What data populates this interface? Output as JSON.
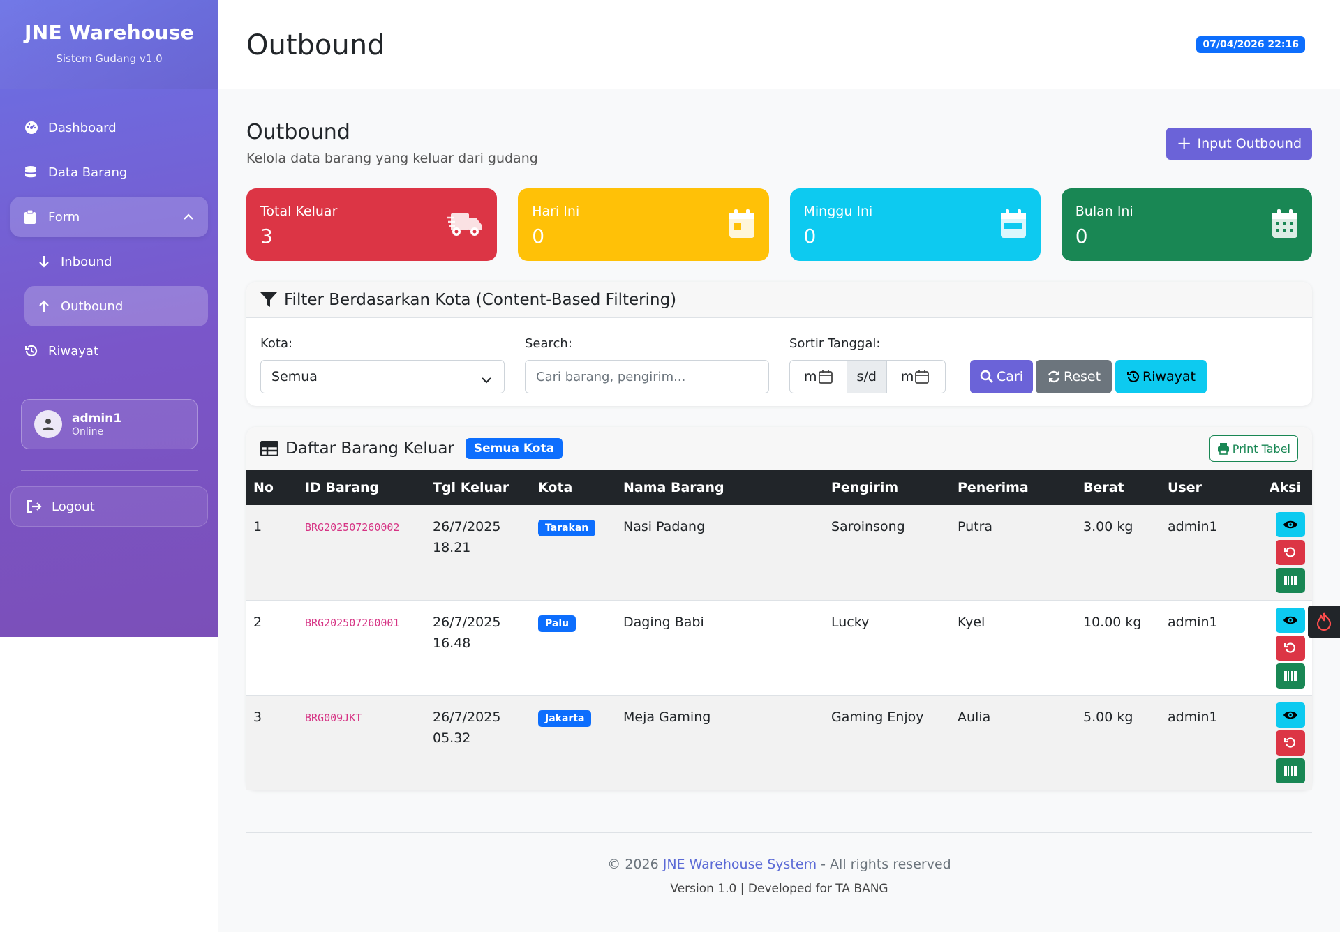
{
  "sidebar": {
    "brand_title": "JNE Warehouse",
    "brand_sub": "Sistem Gudang v1.0",
    "items": [
      {
        "label": "Dashboard",
        "icon": "dashboard-icon"
      },
      {
        "label": "Data Barang",
        "icon": "database-icon"
      },
      {
        "label": "Form",
        "icon": "clipboard-icon"
      },
      {
        "label": "Inbound",
        "icon": "arrow-down-icon"
      },
      {
        "label": "Outbound",
        "icon": "arrow-up-icon"
      },
      {
        "label": "Riwayat",
        "icon": "history-icon"
      }
    ],
    "user": {
      "name": "admin1",
      "status": "Online"
    },
    "logout": "Logout"
  },
  "topbar": {
    "title": "Outbound",
    "datetime": "07/04/2026 22:16"
  },
  "page": {
    "title": "Outbound",
    "subtitle": "Kelola data barang yang keluar dari gudang",
    "input_button": "Input Outbound"
  },
  "stats": [
    {
      "label": "Total Keluar",
      "value": "3",
      "color": "#dc3545",
      "icon": "truck-icon"
    },
    {
      "label": "Hari Ini",
      "value": "0",
      "color": "#ffc107",
      "icon": "calendar-day-icon"
    },
    {
      "label": "Minggu Ini",
      "value": "0",
      "color": "#0dcaf0",
      "icon": "calendar-week-icon"
    },
    {
      "label": "Bulan Ini",
      "value": "0",
      "color": "#198754",
      "icon": "calendar-month-icon"
    }
  ],
  "filter": {
    "title": "Filter Berdasarkan Kota (Content-Based Filtering)",
    "kota_label": "Kota:",
    "kota_value": "Semua",
    "search_label": "Search:",
    "search_placeholder": "Cari barang, pengirim...",
    "date_label": "Sortir Tanggal:",
    "date_from": "m",
    "date_sep": "s/d",
    "date_to": "m",
    "btn_cari": "Cari",
    "btn_reset": "Reset",
    "btn_riwayat": "Riwayat"
  },
  "table": {
    "title": "Daftar Barang Keluar",
    "badge": "Semua Kota",
    "print": "Print Tabel",
    "columns": [
      "No",
      "ID Barang",
      "Tgl Keluar",
      "Kota",
      "Nama Barang",
      "Pengirim",
      "Penerima",
      "Berat",
      "User",
      "Aksi"
    ],
    "rows": [
      {
        "no": "1",
        "id": "BRG202507260002",
        "date": "26/7/2025",
        "time": "18.21",
        "kota": "Tarakan",
        "nama": "Nasi Padang",
        "pengirim": "Saroinsong",
        "penerima": "Putra",
        "berat": "3.00 kg",
        "user": "admin1"
      },
      {
        "no": "2",
        "id": "BRG202507260001",
        "date": "26/7/2025",
        "time": "16.48",
        "kota": "Palu",
        "nama": "Daging Babi",
        "pengirim": "Lucky",
        "penerima": "Kyel",
        "berat": "10.00 kg",
        "user": "admin1"
      },
      {
        "no": "3",
        "id": "BRG009JKT",
        "date": "26/7/2025",
        "time": "05.32",
        "kota": "Jakarta",
        "nama": "Meja Gaming",
        "pengirim": "Gaming Enjoy",
        "penerima": "Aulia",
        "berat": "5.00 kg",
        "user": "admin1"
      }
    ]
  },
  "footer": {
    "copyright": "© 2026",
    "brand": "JNE Warehouse System",
    "rights": "- All rights reserved",
    "version": "Version 1.0 | Developed for TA BANG"
  }
}
